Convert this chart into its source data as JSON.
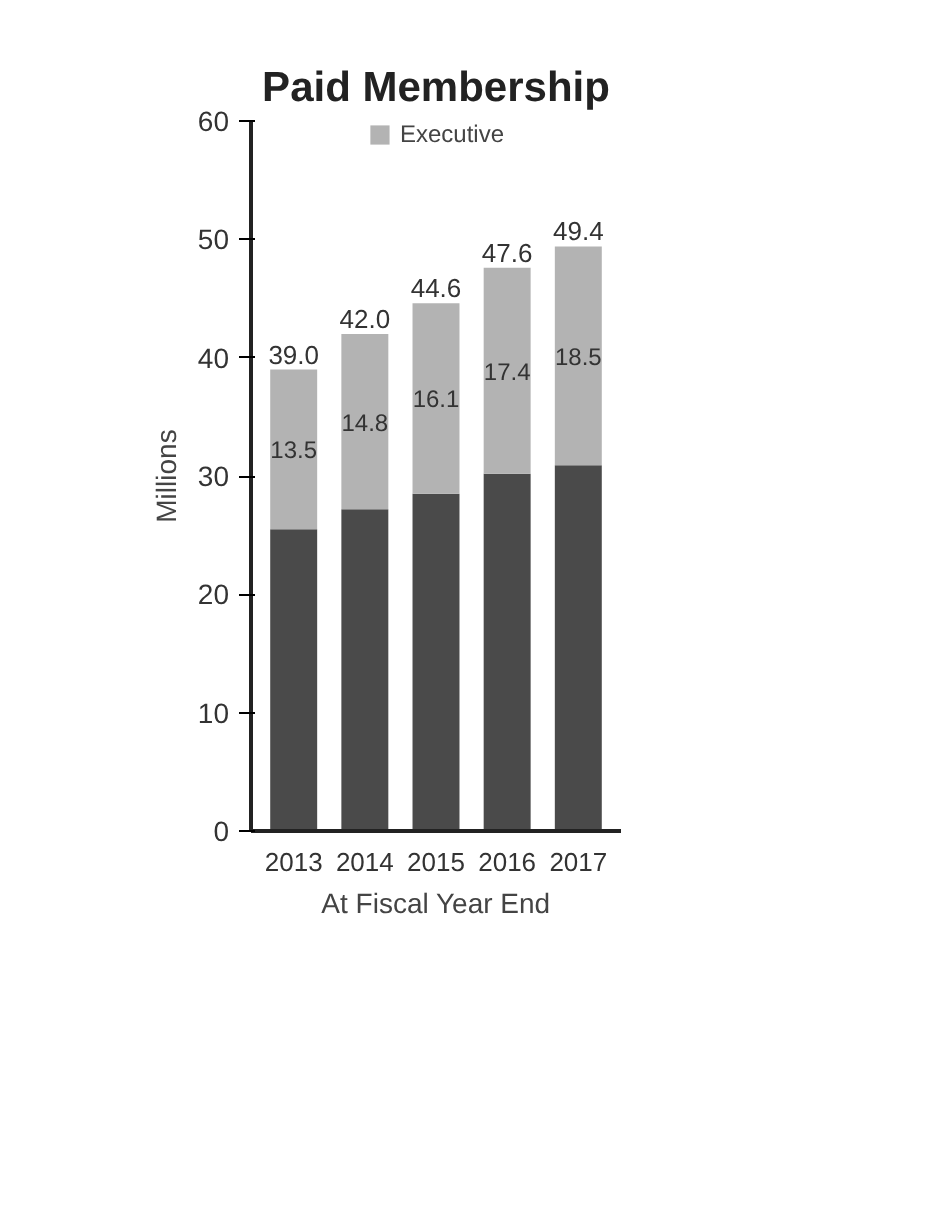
{
  "chart_data": {
    "type": "bar",
    "title": "Paid Membership",
    "xlabel": "At Fiscal Year End",
    "ylabel": "Millions",
    "categories": [
      "2013",
      "2014",
      "2015",
      "2016",
      "2017"
    ],
    "stacked": true,
    "series": [
      {
        "color": "#4a4a4a",
        "values": [
          25.5,
          27.2,
          28.5,
          30.2,
          30.9
        ]
      },
      {
        "name": "Executive",
        "color": "#b3b3b3",
        "values": [
          13.5,
          14.8,
          16.1,
          17.4,
          18.5
        ],
        "value_labels": [
          "13.5",
          "14.8",
          "16.1",
          "17.4",
          "18.5"
        ]
      }
    ],
    "totals": [
      "39.0",
      "42.0",
      "44.6",
      "47.6",
      "49.4"
    ],
    "ylim": [
      0,
      60
    ],
    "yticks": [
      0,
      10,
      20,
      30,
      40,
      50,
      60
    ],
    "grid": false,
    "legend": "top"
  }
}
